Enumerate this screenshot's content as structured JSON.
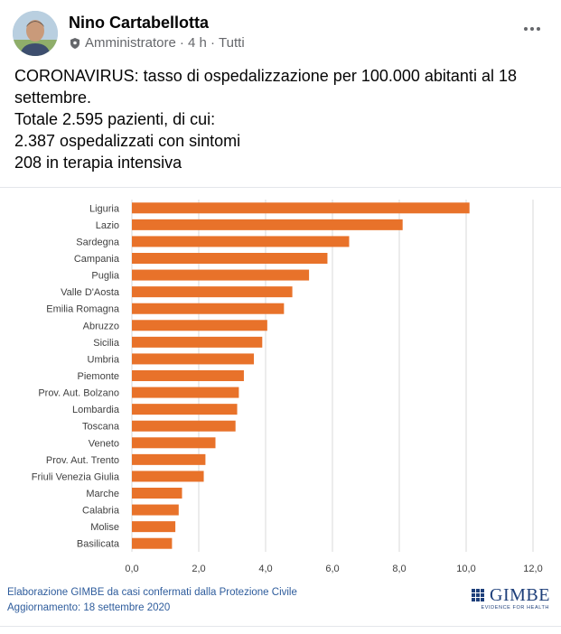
{
  "post": {
    "author": "Nino Cartabellotta",
    "role": "Amministratore",
    "time": "· 4 h ·",
    "audience": "Tutti",
    "text_lines": [
      "CORONAVIRUS: tasso di ospedalizzazione per 100.000 abitanti al 18 settembre.",
      "Totale 2.595 pazienti, di cui:",
      "2.387 ospedalizzati con sintomi",
      "208 in terapia intensiva"
    ],
    "more_icon": "more-horizontal-icon",
    "role_icon": "shield-icon"
  },
  "chart_data": {
    "type": "bar",
    "orientation": "horizontal",
    "categories": [
      "Liguria",
      "Lazio",
      "Sardegna",
      "Campania",
      "Puglia",
      "Valle D'Aosta",
      "Emilia Romagna",
      "Abruzzo",
      "Sicilia",
      "Umbria",
      "Piemonte",
      "Prov. Aut. Bolzano",
      "Lombardia",
      "Toscana",
      "Veneto",
      "Prov. Aut. Trento",
      "Friuli Venezia Giulia",
      "Marche",
      "Calabria",
      "Molise",
      "Basilicata"
    ],
    "values": [
      10.1,
      8.1,
      6.5,
      5.85,
      5.3,
      4.8,
      4.55,
      4.05,
      3.9,
      3.65,
      3.35,
      3.2,
      3.15,
      3.1,
      2.5,
      2.2,
      2.15,
      1.5,
      1.4,
      1.3,
      1.2
    ],
    "xlim": [
      0,
      12
    ],
    "xticks": [
      "0,0",
      "2,0",
      "4,0",
      "6,0",
      "8,0",
      "10,0",
      "12,0"
    ],
    "grid": "vertical",
    "bar_color": "#e8722a"
  },
  "footer": {
    "source": "Elaborazione GIMBE da casi confermati dalla Protezione Civile",
    "updated": "Aggiornamento:  18 settembre 2020",
    "logo_name": "GIMBE",
    "logo_tagline": "EVIDENCE FOR HEALTH"
  }
}
